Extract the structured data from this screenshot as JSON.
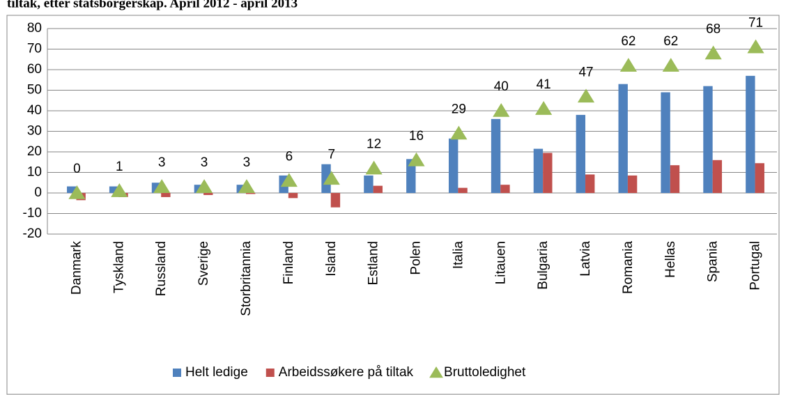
{
  "chart_data": {
    "type": "bar",
    "title": "tiltak, etter statsborgerskap. April 2012 - april 2013",
    "categories": [
      "Danmark",
      "Tyskland",
      "Russland",
      "Sverige",
      "Storbritannia",
      "Finland",
      "Island",
      "Estland",
      "Polen",
      "Italia",
      "Litauen",
      "Bulgaria",
      "Latvia",
      "Romania",
      "Hellas",
      "Spania",
      "Portugal"
    ],
    "series": [
      {
        "name": "Helt ledige",
        "color": "#4f81bd",
        "values": [
          3.2,
          3.2,
          5,
          4,
          4,
          8.5,
          14,
          8.5,
          16.5,
          26.5,
          36,
          21.5,
          38,
          53,
          49,
          52,
          57
        ]
      },
      {
        "name": "Arbeidssøkere på tiltak",
        "color": "#c0504d",
        "values": [
          -3.5,
          -2,
          -2,
          -1,
          -0.5,
          -2.5,
          -7,
          3.5,
          0,
          2.5,
          4,
          19.5,
          9,
          8.5,
          13.5,
          16,
          14.5
        ]
      },
      {
        "name": "Bruttoledighet",
        "color": "#9bbb59",
        "marker": "triangle",
        "values": [
          0,
          1,
          3,
          3,
          3,
          6,
          7,
          12,
          16,
          29,
          40,
          41,
          47,
          62,
          62,
          68,
          71
        ]
      }
    ],
    "ylim": [
      -20,
      80
    ],
    "yticks": [
      -20,
      -10,
      0,
      10,
      20,
      30,
      40,
      50,
      60,
      70,
      80
    ],
    "grid": true,
    "legend": "bottom"
  }
}
